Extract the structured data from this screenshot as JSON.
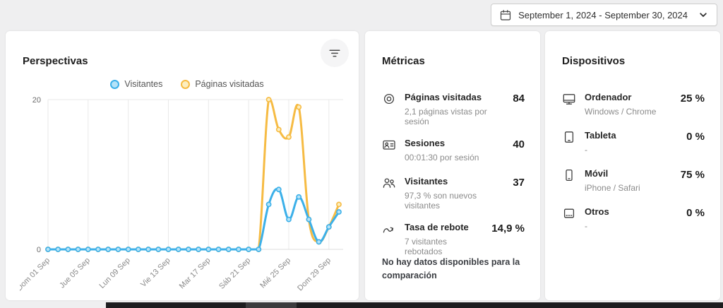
{
  "date_picker": {
    "label": "September 1, 2024 - September 30, 2024",
    "calendar_icon": "calendar-icon",
    "chevron_icon": "chevron-down-icon"
  },
  "panels": {
    "perspectivas": {
      "title": "Perspectivas",
      "filter_icon": "filter-icon"
    },
    "metricas": {
      "title": "Métricas",
      "items": [
        {
          "icon": "eye-icon",
          "label": "Páginas visitadas",
          "sub": "2,1 páginas vistas por sesión",
          "value": "84"
        },
        {
          "icon": "session-card-icon",
          "label": "Sesiones",
          "sub": "00:01:30 por sesión",
          "value": "40"
        },
        {
          "icon": "people-icon",
          "label": "Visitantes",
          "sub": "97,3 % son nuevos visitantes",
          "value": "37"
        },
        {
          "icon": "bounce-arrow-icon",
          "label": "Tasa de rebote",
          "sub": "7 visitantes rebotados",
          "value": "14,9 %"
        }
      ],
      "footer": "No hay datos disponibles para la comparación"
    },
    "dispositivos": {
      "title": "Dispositivos",
      "items": [
        {
          "icon": "desktop-icon",
          "label": "Ordenador",
          "sub": "Windows / Chrome",
          "value": "25 %"
        },
        {
          "icon": "tablet-icon",
          "label": "Tableta",
          "sub": "-",
          "value": "0 %"
        },
        {
          "icon": "mobile-icon",
          "label": "Móvil",
          "sub": "iPhone / Safari",
          "value": "75 %"
        },
        {
          "icon": "other-device-icon",
          "label": "Otros",
          "sub": "-",
          "value": "0 %"
        }
      ]
    }
  },
  "chart_data": {
    "type": "line",
    "x_days": 30,
    "x_range": "Sep 01 2024 - Sep 30 2024",
    "tick_every": 4,
    "tick_labels": [
      "Dom 01 Sep",
      "Jue 05 Sep",
      "Lun 09 Sep",
      "Vie 13 Sep",
      "Mar 17 Sep",
      "Sáb 21 Sep",
      "Mié 25 Sep",
      "Dom 29 Sep"
    ],
    "ylim": [
      0,
      20
    ],
    "yticks": [
      0,
      20
    ],
    "grid": "vertical + top horizontal",
    "legend_position": "top",
    "series": [
      {
        "name": "Visitantes",
        "color": "#3cb0e9",
        "marker_fill": "#b5e3f8",
        "values": [
          0,
          0,
          0,
          0,
          0,
          0,
          0,
          0,
          0,
          0,
          0,
          0,
          0,
          0,
          0,
          0,
          0,
          0,
          0,
          0,
          0,
          0,
          6,
          8,
          4,
          7,
          4,
          1,
          3,
          5
        ]
      },
      {
        "name": "Páginas visitadas",
        "color": "#f6bb43",
        "marker_fill": "#fceebf",
        "values": [
          0,
          0,
          0,
          0,
          0,
          0,
          0,
          0,
          0,
          0,
          0,
          0,
          0,
          0,
          0,
          0,
          0,
          0,
          0,
          0,
          0,
          0,
          20,
          16,
          15,
          19,
          4,
          1,
          3,
          6
        ]
      }
    ]
  }
}
